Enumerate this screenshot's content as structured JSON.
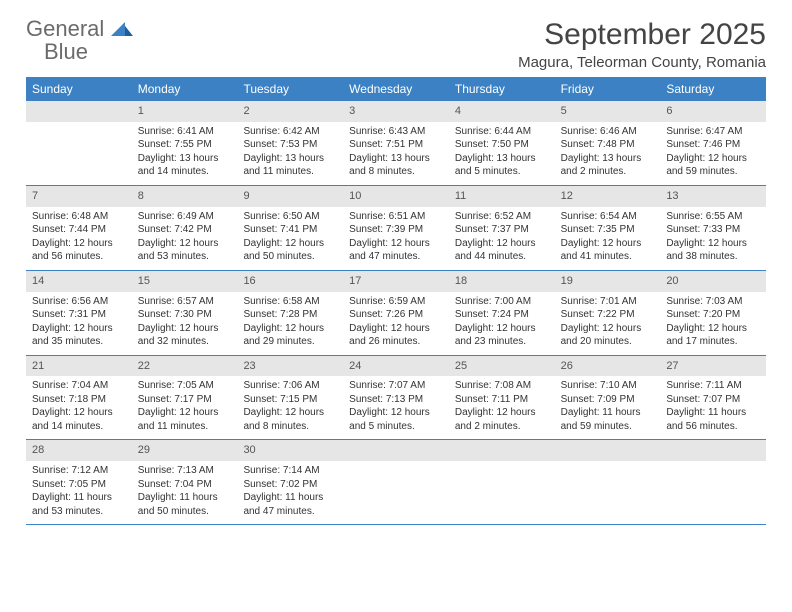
{
  "brand": {
    "word1": "General",
    "word2": "Blue"
  },
  "title": "September 2025",
  "location": "Magura, Teleorman County, Romania",
  "colors": {
    "header_bg": "#3b81c3",
    "header_text": "#ffffff",
    "daynum_bg": "#e6e6e6",
    "text": "#333333",
    "rule": "#3b81c3"
  },
  "day_names": [
    "Sunday",
    "Monday",
    "Tuesday",
    "Wednesday",
    "Thursday",
    "Friday",
    "Saturday"
  ],
  "weeks": [
    [
      {
        "blank": true
      },
      {
        "n": "1",
        "sr": "Sunrise: 6:41 AM",
        "ss": "Sunset: 7:55 PM",
        "dl": "Daylight: 13 hours and 14 minutes."
      },
      {
        "n": "2",
        "sr": "Sunrise: 6:42 AM",
        "ss": "Sunset: 7:53 PM",
        "dl": "Daylight: 13 hours and 11 minutes."
      },
      {
        "n": "3",
        "sr": "Sunrise: 6:43 AM",
        "ss": "Sunset: 7:51 PM",
        "dl": "Daylight: 13 hours and 8 minutes."
      },
      {
        "n": "4",
        "sr": "Sunrise: 6:44 AM",
        "ss": "Sunset: 7:50 PM",
        "dl": "Daylight: 13 hours and 5 minutes."
      },
      {
        "n": "5",
        "sr": "Sunrise: 6:46 AM",
        "ss": "Sunset: 7:48 PM",
        "dl": "Daylight: 13 hours and 2 minutes."
      },
      {
        "n": "6",
        "sr": "Sunrise: 6:47 AM",
        "ss": "Sunset: 7:46 PM",
        "dl": "Daylight: 12 hours and 59 minutes."
      }
    ],
    [
      {
        "n": "7",
        "sr": "Sunrise: 6:48 AM",
        "ss": "Sunset: 7:44 PM",
        "dl": "Daylight: 12 hours and 56 minutes."
      },
      {
        "n": "8",
        "sr": "Sunrise: 6:49 AM",
        "ss": "Sunset: 7:42 PM",
        "dl": "Daylight: 12 hours and 53 minutes."
      },
      {
        "n": "9",
        "sr": "Sunrise: 6:50 AM",
        "ss": "Sunset: 7:41 PM",
        "dl": "Daylight: 12 hours and 50 minutes."
      },
      {
        "n": "10",
        "sr": "Sunrise: 6:51 AM",
        "ss": "Sunset: 7:39 PM",
        "dl": "Daylight: 12 hours and 47 minutes."
      },
      {
        "n": "11",
        "sr": "Sunrise: 6:52 AM",
        "ss": "Sunset: 7:37 PM",
        "dl": "Daylight: 12 hours and 44 minutes."
      },
      {
        "n": "12",
        "sr": "Sunrise: 6:54 AM",
        "ss": "Sunset: 7:35 PM",
        "dl": "Daylight: 12 hours and 41 minutes."
      },
      {
        "n": "13",
        "sr": "Sunrise: 6:55 AM",
        "ss": "Sunset: 7:33 PM",
        "dl": "Daylight: 12 hours and 38 minutes."
      }
    ],
    [
      {
        "n": "14",
        "sr": "Sunrise: 6:56 AM",
        "ss": "Sunset: 7:31 PM",
        "dl": "Daylight: 12 hours and 35 minutes."
      },
      {
        "n": "15",
        "sr": "Sunrise: 6:57 AM",
        "ss": "Sunset: 7:30 PM",
        "dl": "Daylight: 12 hours and 32 minutes."
      },
      {
        "n": "16",
        "sr": "Sunrise: 6:58 AM",
        "ss": "Sunset: 7:28 PM",
        "dl": "Daylight: 12 hours and 29 minutes."
      },
      {
        "n": "17",
        "sr": "Sunrise: 6:59 AM",
        "ss": "Sunset: 7:26 PM",
        "dl": "Daylight: 12 hours and 26 minutes."
      },
      {
        "n": "18",
        "sr": "Sunrise: 7:00 AM",
        "ss": "Sunset: 7:24 PM",
        "dl": "Daylight: 12 hours and 23 minutes."
      },
      {
        "n": "19",
        "sr": "Sunrise: 7:01 AM",
        "ss": "Sunset: 7:22 PM",
        "dl": "Daylight: 12 hours and 20 minutes."
      },
      {
        "n": "20",
        "sr": "Sunrise: 7:03 AM",
        "ss": "Sunset: 7:20 PM",
        "dl": "Daylight: 12 hours and 17 minutes."
      }
    ],
    [
      {
        "n": "21",
        "sr": "Sunrise: 7:04 AM",
        "ss": "Sunset: 7:18 PM",
        "dl": "Daylight: 12 hours and 14 minutes."
      },
      {
        "n": "22",
        "sr": "Sunrise: 7:05 AM",
        "ss": "Sunset: 7:17 PM",
        "dl": "Daylight: 12 hours and 11 minutes."
      },
      {
        "n": "23",
        "sr": "Sunrise: 7:06 AM",
        "ss": "Sunset: 7:15 PM",
        "dl": "Daylight: 12 hours and 8 minutes."
      },
      {
        "n": "24",
        "sr": "Sunrise: 7:07 AM",
        "ss": "Sunset: 7:13 PM",
        "dl": "Daylight: 12 hours and 5 minutes."
      },
      {
        "n": "25",
        "sr": "Sunrise: 7:08 AM",
        "ss": "Sunset: 7:11 PM",
        "dl": "Daylight: 12 hours and 2 minutes."
      },
      {
        "n": "26",
        "sr": "Sunrise: 7:10 AM",
        "ss": "Sunset: 7:09 PM",
        "dl": "Daylight: 11 hours and 59 minutes."
      },
      {
        "n": "27",
        "sr": "Sunrise: 7:11 AM",
        "ss": "Sunset: 7:07 PM",
        "dl": "Daylight: 11 hours and 56 minutes."
      }
    ],
    [
      {
        "n": "28",
        "sr": "Sunrise: 7:12 AM",
        "ss": "Sunset: 7:05 PM",
        "dl": "Daylight: 11 hours and 53 minutes."
      },
      {
        "n": "29",
        "sr": "Sunrise: 7:13 AM",
        "ss": "Sunset: 7:04 PM",
        "dl": "Daylight: 11 hours and 50 minutes."
      },
      {
        "n": "30",
        "sr": "Sunrise: 7:14 AM",
        "ss": "Sunset: 7:02 PM",
        "dl": "Daylight: 11 hours and 47 minutes."
      },
      {
        "blank": true
      },
      {
        "blank": true
      },
      {
        "blank": true
      },
      {
        "blank": true
      }
    ]
  ]
}
